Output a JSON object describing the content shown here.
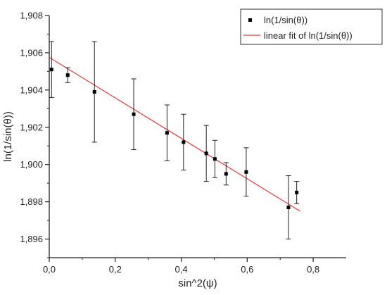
{
  "chart_data": {
    "type": "scatter",
    "xlabel": "sin^2(ψ)",
    "ylabel": "ln(1/sin(θ))",
    "xlim": [
      0.0,
      0.9
    ],
    "ylim": [
      1.895,
      1.908
    ],
    "xticks": [
      0.0,
      0.2,
      0.4,
      0.6,
      0.8
    ],
    "xtick_labels": [
      "0,0",
      "0,2",
      "0,4",
      "0,6",
      "0,8"
    ],
    "yticks": [
      1.896,
      1.898,
      1.9,
      1.902,
      1.904,
      1.906,
      1.908
    ],
    "ytick_labels": [
      "1,896",
      "1,898",
      "1,900",
      "1,902",
      "1,904",
      "1,906",
      "1,908"
    ],
    "grid": false,
    "legend_position": "top-right",
    "series": [
      {
        "name": "ln(1/sin(θ))",
        "color": "#000000",
        "points": [
          {
            "x": 0.007,
            "y": 1.9051,
            "err": 0.0015
          },
          {
            "x": 0.056,
            "y": 1.9048,
            "err": 0.0004
          },
          {
            "x": 0.137,
            "y": 1.9039,
            "err": 0.0027
          },
          {
            "x": 0.256,
            "y": 1.9027,
            "err": 0.0019
          },
          {
            "x": 0.357,
            "y": 1.9017,
            "err": 0.0015
          },
          {
            "x": 0.407,
            "y": 1.9012,
            "err": 0.0015
          },
          {
            "x": 0.476,
            "y": 1.9006,
            "err": 0.0015
          },
          {
            "x": 0.502,
            "y": 1.9003,
            "err": 0.001
          },
          {
            "x": 0.536,
            "y": 1.8995,
            "err": 0.0006
          },
          {
            "x": 0.597,
            "y": 1.8996,
            "err": 0.0013
          },
          {
            "x": 0.725,
            "y": 1.8977,
            "err": 0.0017
          },
          {
            "x": 0.75,
            "y": 1.8985,
            "err": 0.0006
          }
        ]
      },
      {
        "name": "linear fit of ln(1/sin(θ))",
        "color": "#e8393a",
        "type": "line",
        "x": [
          0.0,
          0.76
        ],
        "y": [
          1.90575,
          1.8975
        ]
      }
    ]
  }
}
